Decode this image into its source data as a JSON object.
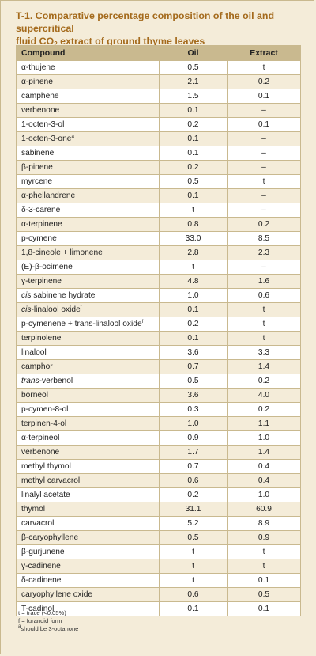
{
  "title": {
    "line1": "T-1. Comparative percentage composition of the oil and supercritical",
    "line2_a": "fluid CO",
    "line2_sub": "2",
    "line2_b": " extract of ground thyme leaves"
  },
  "columns": [
    "Compound",
    "Oil",
    "Extract"
  ],
  "rows": [
    {
      "c": "α-thujene",
      "o": "0.5",
      "e": "t"
    },
    {
      "c": "α-pinene",
      "o": "2.1",
      "e": "0.2"
    },
    {
      "c": "camphene",
      "o": "1.5",
      "e": "0.1"
    },
    {
      "c": "verbenone",
      "o": "0.1",
      "e": "–"
    },
    {
      "c": "1-octen-3-ol",
      "o": "0.2",
      "e": "0.1"
    },
    {
      "c": "1-octen-3-one",
      "sup": "a",
      "o": "0.1",
      "e": "–"
    },
    {
      "c": "sabinene",
      "o": "0.1",
      "e": "–"
    },
    {
      "c": "β-pinene",
      "o": "0.2",
      "e": "–"
    },
    {
      "c": "myrcene",
      "o": "0.5",
      "e": "t"
    },
    {
      "c": "α-phellandrene",
      "o": "0.1",
      "e": "–"
    },
    {
      "c": "δ-3-carene",
      "o": "t",
      "e": "–"
    },
    {
      "c": "α-terpinene",
      "o": "0.8",
      "e": "0.2"
    },
    {
      "c": "p-cymene",
      "o": "33.0",
      "e": "8.5"
    },
    {
      "c": "1,8-cineole + limonene",
      "o": "2.8",
      "e": "2.3"
    },
    {
      "c": "(E)-β-ocimene",
      "o": "t",
      "e": "–"
    },
    {
      "c": "γ-terpinene",
      "o": "4.8",
      "e": "1.6"
    },
    {
      "c": "sabinene hydrate",
      "ital": "cis",
      "o": "1.0",
      "e": "0.6"
    },
    {
      "c": "-linalool oxide",
      "ital": "cis",
      "sup": "f",
      "o": "0.1",
      "e": "t"
    },
    {
      "c": "p-cymenene + trans-linalool oxide",
      "sup": "f",
      "o": "0.2",
      "e": "t"
    },
    {
      "c": "terpinolene",
      "o": "0.1",
      "e": "t"
    },
    {
      "c": "linalool",
      "o": "3.6",
      "e": "3.3"
    },
    {
      "c": "camphor",
      "o": "0.7",
      "e": "1.4"
    },
    {
      "c": "-verbenol",
      "ital": "trans",
      "o": "0.5",
      "e": "0.2"
    },
    {
      "c": "borneol",
      "o": "3.6",
      "e": "4.0"
    },
    {
      "c": "p-cymen-8-ol",
      "o": "0.3",
      "e": "0.2"
    },
    {
      "c": "terpinen-4-ol",
      "o": "1.0",
      "e": "1.1"
    },
    {
      "c": "α-terpineol",
      "o": "0.9",
      "e": "1.0"
    },
    {
      "c": "verbenone",
      "o": "1.7",
      "e": "1.4"
    },
    {
      "c": "methyl thymol",
      "o": "0.7",
      "e": "0.4"
    },
    {
      "c": "methyl carvacrol",
      "o": "0.6",
      "e": "0.4"
    },
    {
      "c": "linalyl acetate",
      "o": "0.2",
      "e": "1.0"
    },
    {
      "c": "thymol",
      "o": "31.1",
      "e": "60.9"
    },
    {
      "c": "carvacrol",
      "o": "5.2",
      "e": "8.9"
    },
    {
      "c": "β-caryophyllene",
      "o": "0.5",
      "e": "0.9"
    },
    {
      "c": "β-gurjunene",
      "o": "t",
      "e": "t"
    },
    {
      "c": "γ-cadinene",
      "o": "t",
      "e": "t"
    },
    {
      "c": "δ-cadinene",
      "o": "t",
      "e": "0.1"
    },
    {
      "c": "caryophyllene oxide",
      "o": "0.6",
      "e": "0.5"
    },
    {
      "c": "T-cadinol",
      "o": "0.1",
      "e": "0.1"
    }
  ],
  "notes": [
    {
      "sup": "",
      "text": "t = trace (<0.05%)"
    },
    {
      "sup": "",
      "text": "f = furanoid form"
    },
    {
      "sup": "a",
      "text": "should be 3-octanone"
    }
  ],
  "colors": {
    "title": "#a46a1c",
    "header_bg": "#c9b98f",
    "row_alt": "#f4ecd9",
    "row": "#ffffff"
  }
}
